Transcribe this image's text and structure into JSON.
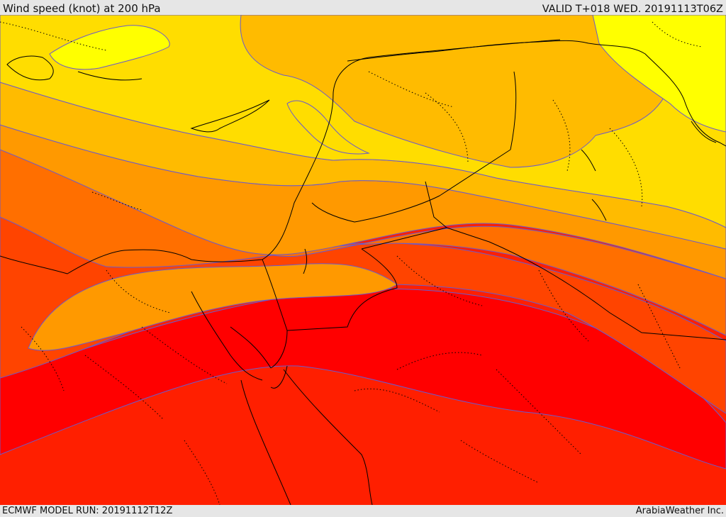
{
  "header": {
    "title": "Wind speed (knot) at 200 hPa",
    "valid": "VALID T+018 WED. 20191113T06Z"
  },
  "footer": {
    "model_run": "ECMWF MODEL RUN: 20191112T12Z",
    "credit": "ArabiaWeather Inc."
  },
  "colors": {
    "band_1": "#ffff00",
    "band_2": "#ffdd00",
    "band_3": "#ffbb00",
    "band_4": "#ff9900",
    "band_5": "#ff6f00",
    "band_6": "#ff4400",
    "band_7": "#ff1f00",
    "band_8": "#ff0000",
    "contour": "#6a5acd",
    "border": "#000000"
  }
}
